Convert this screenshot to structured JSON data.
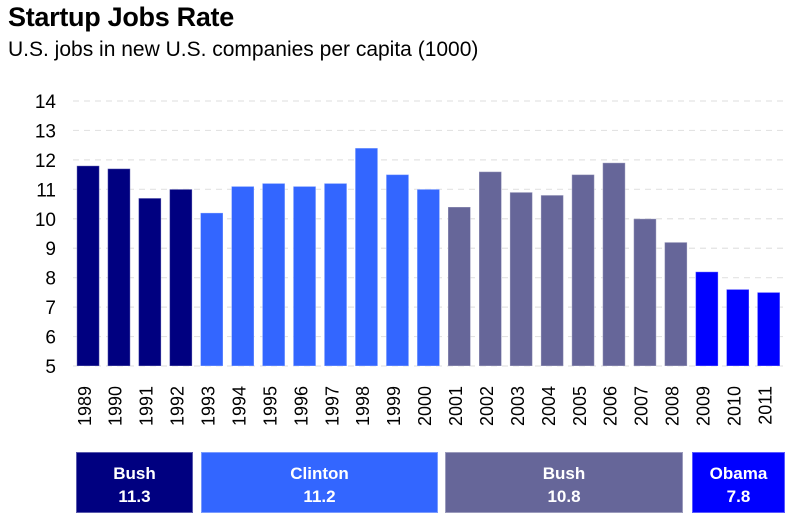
{
  "header": {
    "title": "Startup Jobs Rate",
    "subtitle": "U.S. jobs in new U.S. companies per capita (1000)"
  },
  "colors": {
    "bush_1": "#000080",
    "clinton": "#3366ff",
    "bush_2": "#666699",
    "obama": "#0000ff",
    "grid": "#e3e3e3"
  },
  "eras": [
    {
      "name": "Bush",
      "average": "11.3",
      "color_key": "bush_1",
      "start_year": "1989",
      "end_year": "1992"
    },
    {
      "name": "Clinton",
      "average": "11.2",
      "color_key": "clinton",
      "start_year": "1993",
      "end_year": "2000"
    },
    {
      "name": "Bush",
      "average": "10.8",
      "color_key": "bush_2",
      "start_year": "2001",
      "end_year": "2008"
    },
    {
      "name": "Obama",
      "average": "7.8",
      "color_key": "obama",
      "start_year": "2009",
      "end_year": "2011"
    }
  ],
  "chart_data": {
    "type": "bar",
    "title": "Startup Jobs Rate",
    "subtitle": "U.S. jobs in new U.S. companies per capita (1000)",
    "xlabel": "",
    "ylabel": "",
    "ylim": [
      5,
      14
    ],
    "yticks": [
      "5",
      "6",
      "7",
      "8",
      "9",
      "10",
      "11",
      "12",
      "13",
      "14"
    ],
    "grid": true,
    "legend": "none",
    "categories": [
      "1989",
      "1990",
      "1991",
      "1992",
      "1993",
      "1994",
      "1995",
      "1996",
      "1997",
      "1998",
      "1999",
      "2000",
      "2001",
      "2002",
      "2003",
      "2004",
      "2005",
      "2006",
      "2007",
      "2008",
      "2009",
      "2010",
      "2011"
    ],
    "values": [
      11.8,
      11.7,
      10.7,
      11.0,
      10.2,
      11.1,
      11.2,
      11.1,
      11.2,
      12.4,
      11.5,
      11.0,
      10.4,
      11.6,
      10.9,
      10.8,
      11.5,
      11.9,
      10.0,
      9.2,
      8.2,
      7.6,
      7.5
    ],
    "groups": [
      "bush_1",
      "bush_1",
      "bush_1",
      "bush_1",
      "clinton",
      "clinton",
      "clinton",
      "clinton",
      "clinton",
      "clinton",
      "clinton",
      "clinton",
      "bush_2",
      "bush_2",
      "bush_2",
      "bush_2",
      "bush_2",
      "bush_2",
      "bush_2",
      "bush_2",
      "obama",
      "obama",
      "obama"
    ]
  }
}
